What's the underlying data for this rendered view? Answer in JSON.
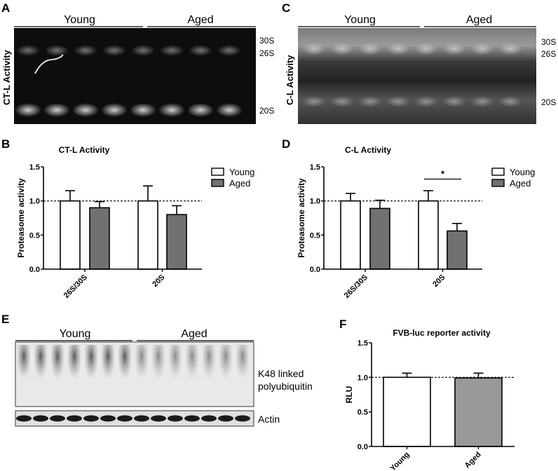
{
  "panels": {
    "A": {
      "letter": "A",
      "ylabel": "CT-L Activity",
      "group_labels": [
        "Young",
        "Aged"
      ],
      "band_labels": [
        "30S",
        "26S",
        "20S"
      ]
    },
    "C": {
      "letter": "C",
      "ylabel": "C-L Activity",
      "group_labels": [
        "Young",
        "Aged"
      ],
      "band_labels": [
        "30S",
        "26S",
        "20S"
      ]
    },
    "E": {
      "letter": "E",
      "group_labels": [
        "Young",
        "Aged"
      ],
      "blot_labels": [
        "K48 linked",
        "polyubiquitin",
        "Actin"
      ]
    },
    "B": {
      "letter": "B"
    },
    "D": {
      "letter": "D"
    },
    "F": {
      "letter": "F"
    }
  },
  "chart_data": [
    {
      "id": "B",
      "type": "bar",
      "title": "CT-L Activity",
      "ylabel": "Proteasome activity",
      "xlabel": "",
      "categories": [
        "26S/30S",
        "20S"
      ],
      "ylim": [
        0,
        1.5
      ],
      "yticks": [
        "0.0",
        "0.5",
        "1.0",
        "1.5"
      ],
      "reference_line": 1.0,
      "legend": {
        "position": "right",
        "entries": [
          "Young",
          "Aged"
        ]
      },
      "series": [
        {
          "name": "Young",
          "color": "#ffffff",
          "values": [
            1.0,
            1.0
          ],
          "error_upper": [
            1.15,
            1.22
          ]
        },
        {
          "name": "Aged",
          "color": "#6f7172",
          "values": [
            0.9,
            0.8
          ],
          "error_upper": [
            0.99,
            0.93
          ]
        }
      ],
      "annotations": []
    },
    {
      "id": "D",
      "type": "bar",
      "title": "C-L Activity",
      "ylabel": "Proteasome activity",
      "xlabel": "",
      "categories": [
        "26S/30S",
        "20S"
      ],
      "ylim": [
        0,
        1.5
      ],
      "yticks": [
        "0.0",
        "0.5",
        "1.0",
        "1.5"
      ],
      "reference_line": 1.0,
      "legend": {
        "position": "right",
        "entries": [
          "Young",
          "Aged"
        ]
      },
      "series": [
        {
          "name": "Young",
          "color": "#ffffff",
          "values": [
            1.0,
            1.0
          ],
          "error_upper": [
            1.11,
            1.15
          ]
        },
        {
          "name": "Aged",
          "color": "#6f7172",
          "values": [
            0.89,
            0.56
          ],
          "error_upper": [
            1.01,
            0.67
          ]
        }
      ],
      "annotations": [
        {
          "text": "*",
          "category": "20S"
        }
      ]
    },
    {
      "id": "F",
      "type": "bar",
      "title": "FVB-luc reporter activity",
      "ylabel": "RLU",
      "xlabel": "",
      "categories": [
        "Young",
        "Aged"
      ],
      "ylim": [
        0,
        1.5
      ],
      "yticks": [
        "0.0",
        "0.5",
        "1.0",
        "1.5"
      ],
      "reference_line": 1.0,
      "series": [
        {
          "values": [
            1.0,
            0.99
          ],
          "error_upper": [
            1.06,
            1.06
          ],
          "colors": [
            "#ffffff",
            "#98999b"
          ]
        }
      ],
      "annotations": []
    }
  ]
}
